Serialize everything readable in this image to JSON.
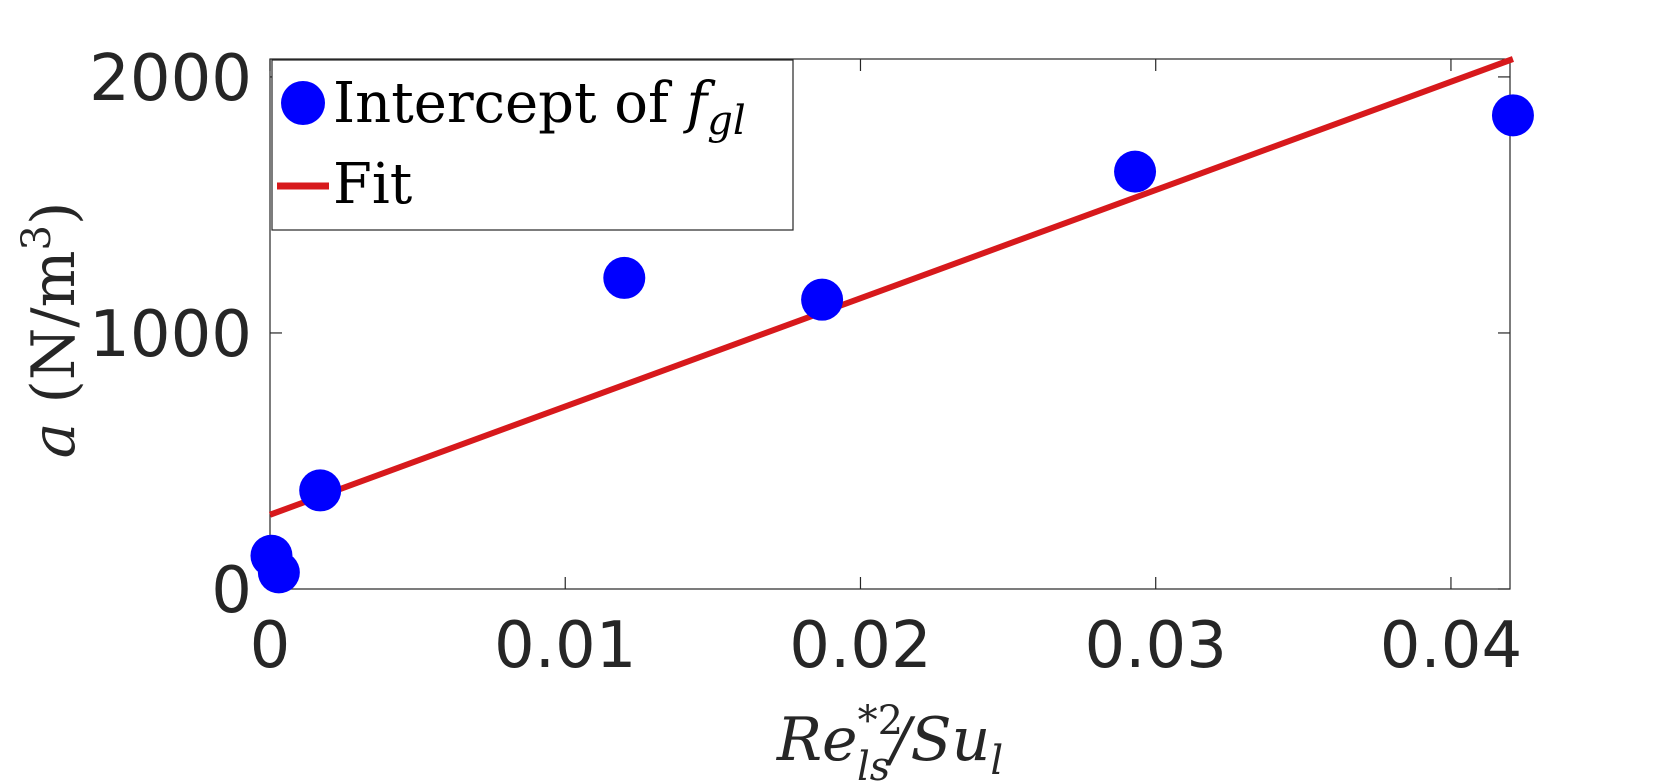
{
  "chart_data": {
    "type": "scatter",
    "xlabel": "Re*2ls/Sul",
    "ylabel": "a (N/m3)",
    "xlim": [
      0,
      0.042
    ],
    "ylim": [
      0,
      2070
    ],
    "xticks": [
      0,
      0.01,
      0.02,
      0.03,
      0.04
    ],
    "xtick_labels": [
      "0",
      "0.01",
      "0.02",
      "0.03",
      "0.04"
    ],
    "yticks": [
      0,
      1000,
      2000
    ],
    "ytick_labels": [
      "0",
      "1000",
      "2000"
    ],
    "grid": false,
    "legend_position": "top-left",
    "series": [
      {
        "name": "Intercept of fgl",
        "kind": "scatter",
        "color": "#0000ff",
        "x": [
          5e-05,
          0.0003,
          0.0017,
          0.012,
          0.0187,
          0.0293,
          0.0421
        ],
        "y": [
          130,
          65,
          385,
          1215,
          1130,
          1630,
          1850
        ]
      },
      {
        "name": "Fit",
        "kind": "line",
        "color": "#d7191c",
        "x": [
          0,
          0.0421
        ],
        "y": [
          290,
          2070
        ]
      }
    ]
  }
}
